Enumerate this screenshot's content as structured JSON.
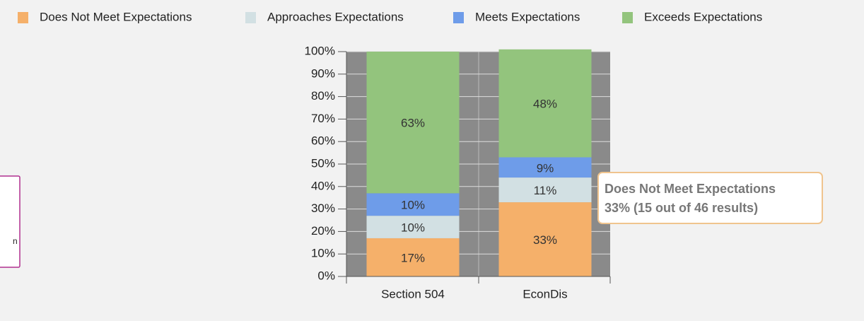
{
  "chart_data": {
    "type": "bar",
    "stacked": true,
    "categories": [
      "Section 504",
      "EconDis"
    ],
    "series": [
      {
        "name": "Does Not Meet Expectations",
        "color": "#f5b06a",
        "values": [
          17,
          33
        ],
        "value_labels": [
          "17%",
          "33%"
        ]
      },
      {
        "name": "Approaches Expectations",
        "color": "#d2e0e3",
        "values": [
          10,
          11
        ],
        "value_labels": [
          "10%",
          "11%"
        ]
      },
      {
        "name": "Meets Expectations",
        "color": "#6e9ce9",
        "values": [
          10,
          9
        ],
        "value_labels": [
          "10%",
          "9%"
        ]
      },
      {
        "name": "Exceeds Expectations",
        "color": "#93c47d",
        "values": [
          63,
          48
        ],
        "value_labels": [
          "63%",
          "48%"
        ]
      }
    ],
    "ylim": [
      0,
      100
    ],
    "yticks": [
      {
        "value": 0,
        "label": "0%"
      },
      {
        "value": 10,
        "label": "10%"
      },
      {
        "value": 20,
        "label": "20%"
      },
      {
        "value": 30,
        "label": "30%"
      },
      {
        "value": 40,
        "label": "40%"
      },
      {
        "value": 50,
        "label": "50%"
      },
      {
        "value": 60,
        "label": "60%"
      },
      {
        "value": 70,
        "label": "70%"
      },
      {
        "value": 80,
        "label": "80%"
      },
      {
        "value": 90,
        "label": "90%"
      },
      {
        "value": 100,
        "label": "100%"
      }
    ],
    "grid": true,
    "legend": "top",
    "tooltip": {
      "title": "Does Not Meet Expectations",
      "text": "33% (15 out of 46 results)"
    }
  },
  "left_panel": {
    "fragment": "n"
  }
}
